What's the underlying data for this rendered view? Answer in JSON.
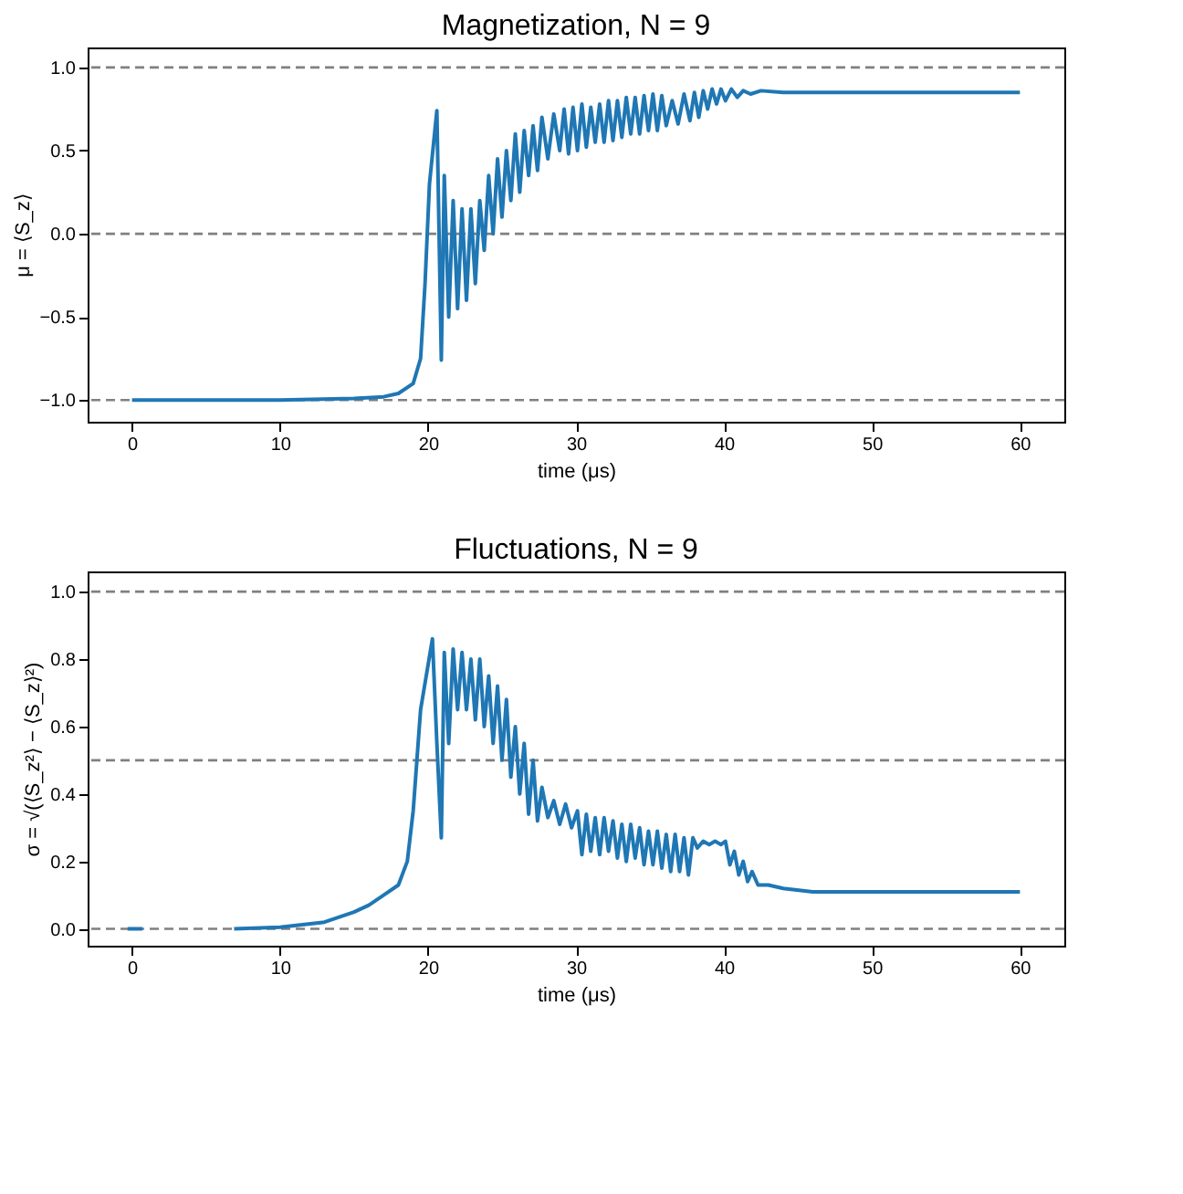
{
  "chart_data": [
    {
      "type": "line",
      "title": "Magnetization, N = 9",
      "xlabel": "time (μs)",
      "ylabel": "μ = ⟨S_z⟩",
      "xlim": [
        -3,
        63
      ],
      "xticks": [
        0,
        10,
        20,
        30,
        40,
        50,
        60
      ],
      "ylim": [
        -1.13,
        1.12
      ],
      "yticks": [
        {
          "value": -1,
          "label": "−1.0"
        },
        {
          "value": -0.5,
          "label": "−0.5"
        },
        {
          "value": 0,
          "label": "0.0"
        },
        {
          "value": 0.5,
          "label": "0.5"
        },
        {
          "value": 1,
          "label": "1.0"
        }
      ],
      "grid": false,
      "line_style": "solid",
      "ref_lines": [
        {
          "axis": "y",
          "value": -1.0,
          "color": "#808080",
          "line_style": "dashed"
        },
        {
          "axis": "y",
          "value": 0.0,
          "color": "#808080",
          "line_style": "dashed"
        },
        {
          "axis": "y",
          "value": 1.0,
          "color": "#808080",
          "line_style": "dashed"
        }
      ],
      "series": [
        {
          "color": "#1f77b4",
          "x": [
            0,
            5,
            10,
            15,
            17,
            18,
            19,
            19.5,
            19.8,
            20.1,
            20.6,
            20.9,
            21.1,
            21.4,
            21.7,
            22.0,
            22.3,
            22.6,
            22.9,
            23.2,
            23.5,
            23.8,
            24.1,
            24.4,
            24.7,
            25.0,
            25.3,
            25.6,
            25.9,
            26.2,
            26.5,
            26.8,
            27.1,
            27.4,
            27.7,
            28.1,
            28.5,
            28.9,
            29.2,
            29.5,
            29.8,
            30.1,
            30.4,
            30.7,
            31.0,
            31.3,
            31.6,
            31.9,
            32.2,
            32.5,
            32.8,
            33.1,
            33.4,
            33.7,
            34.0,
            34.3,
            34.6,
            34.9,
            35.2,
            35.5,
            35.8,
            36.1,
            36.5,
            36.9,
            37.3,
            37.7,
            38.0,
            38.3,
            38.6,
            38.9,
            39.2,
            39.5,
            39.8,
            40.1,
            40.5,
            40.9,
            41.3,
            41.8,
            42.5,
            44,
            50,
            60
          ],
          "values": [
            -1.0,
            -1.0,
            -1.0,
            -0.99,
            -0.98,
            -0.96,
            -0.9,
            -0.75,
            -0.3,
            0.3,
            0.74,
            -0.76,
            0.35,
            -0.5,
            0.2,
            -0.45,
            0.15,
            -0.4,
            0.15,
            -0.3,
            0.2,
            -0.1,
            0.35,
            0.0,
            0.45,
            0.1,
            0.5,
            0.2,
            0.6,
            0.25,
            0.62,
            0.35,
            0.65,
            0.38,
            0.7,
            0.45,
            0.72,
            0.5,
            0.75,
            0.48,
            0.76,
            0.5,
            0.78,
            0.52,
            0.76,
            0.55,
            0.78,
            0.55,
            0.8,
            0.56,
            0.8,
            0.58,
            0.82,
            0.6,
            0.82,
            0.6,
            0.83,
            0.62,
            0.84,
            0.62,
            0.83,
            0.65,
            0.8,
            0.66,
            0.84,
            0.68,
            0.85,
            0.7,
            0.86,
            0.75,
            0.87,
            0.78,
            0.87,
            0.8,
            0.87,
            0.82,
            0.86,
            0.84,
            0.86,
            0.85,
            0.85,
            0.85
          ]
        }
      ]
    },
    {
      "type": "line",
      "title": "Fluctuations, N = 9",
      "xlabel": "time (μs)",
      "ylabel": "σ = √(⟨S_z²⟩ − ⟨S_z⟩²)",
      "xlim": [
        -3,
        63
      ],
      "xticks": [
        0,
        10,
        20,
        30,
        40,
        50,
        60
      ],
      "ylim": [
        -0.05,
        1.06
      ],
      "yticks": [
        {
          "value": 0,
          "label": "0.0"
        },
        {
          "value": 0.2,
          "label": "0.2"
        },
        {
          "value": 0.4,
          "label": "0.4"
        },
        {
          "value": 0.6,
          "label": "0.6"
        },
        {
          "value": 0.8,
          "label": "0.8"
        },
        {
          "value": 1,
          "label": "1.0"
        }
      ],
      "grid": false,
      "line_style": "solid",
      "ref_lines": [
        {
          "axis": "y",
          "value": 0.0,
          "color": "#808080",
          "line_style": "dashed"
        },
        {
          "axis": "y",
          "value": 0.5,
          "color": "#808080",
          "line_style": "dashed"
        },
        {
          "axis": "y",
          "value": 1.0,
          "color": "#808080",
          "line_style": "dashed"
        }
      ],
      "series": [
        {
          "color": "#1f77b4",
          "x": [
            -0.3,
            0.7,
            3,
            6.9,
            10,
            13,
            15,
            16,
            17,
            18,
            18.6,
            19,
            19.5,
            20.3,
            20.6,
            20.9,
            21.1,
            21.4,
            21.7,
            22.0,
            22.3,
            22.6,
            22.9,
            23.2,
            23.5,
            23.8,
            24.1,
            24.4,
            24.7,
            25.0,
            25.3,
            25.6,
            25.9,
            26.2,
            26.5,
            26.8,
            27.1,
            27.4,
            27.7,
            28.1,
            28.5,
            28.9,
            29.3,
            29.7,
            30.1,
            30.4,
            30.7,
            31.0,
            31.3,
            31.6,
            31.9,
            32.2,
            32.5,
            32.8,
            33.1,
            33.4,
            33.7,
            34.0,
            34.3,
            34.6,
            34.9,
            35.2,
            35.5,
            35.8,
            36.1,
            36.4,
            36.7,
            37.0,
            37.3,
            37.6,
            37.9,
            38.2,
            38.6,
            39.0,
            39.4,
            39.8,
            40.1,
            40.4,
            40.7,
            41.0,
            41.3,
            41.6,
            41.9,
            42.3,
            43,
            44,
            46,
            50,
            60
          ],
          "values": [
            0.0,
            0.0,
            null,
            0.0,
            0.005,
            0.02,
            0.05,
            0.07,
            0.1,
            0.13,
            0.2,
            0.35,
            0.65,
            0.86,
            0.55,
            0.27,
            0.82,
            0.55,
            0.83,
            0.65,
            0.82,
            0.65,
            0.8,
            0.62,
            0.8,
            0.6,
            0.75,
            0.55,
            0.72,
            0.5,
            0.68,
            0.45,
            0.6,
            0.4,
            0.55,
            0.34,
            0.5,
            0.32,
            0.42,
            0.33,
            0.38,
            0.31,
            0.37,
            0.3,
            0.35,
            0.22,
            0.34,
            0.23,
            0.33,
            0.22,
            0.33,
            0.23,
            0.32,
            0.21,
            0.31,
            0.2,
            0.31,
            0.21,
            0.3,
            0.19,
            0.29,
            0.19,
            0.29,
            0.18,
            0.28,
            0.17,
            0.28,
            0.17,
            0.27,
            0.16,
            0.27,
            0.24,
            0.26,
            0.25,
            0.26,
            0.25,
            0.26,
            0.19,
            0.23,
            0.16,
            0.2,
            0.14,
            0.17,
            0.13,
            0.13,
            0.12,
            0.11,
            0.11,
            0.11
          ]
        }
      ]
    }
  ]
}
